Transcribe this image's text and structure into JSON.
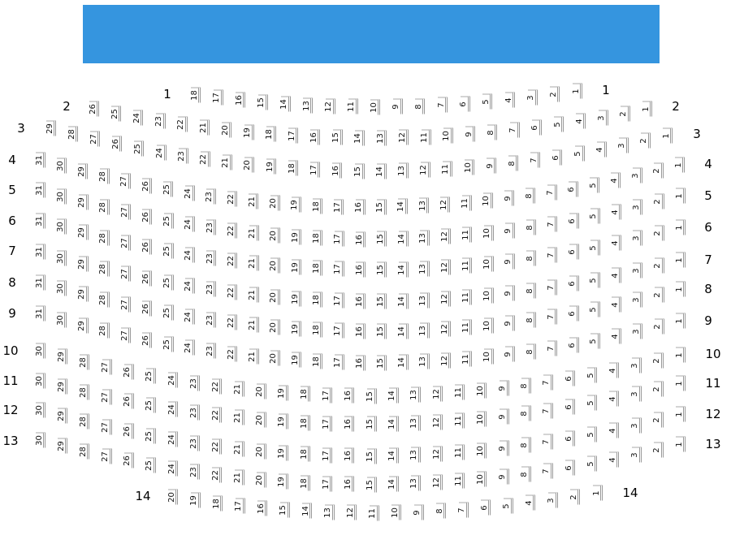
{
  "stage": {
    "color": "#3595df"
  },
  "rows": [
    {
      "label": "1",
      "seats": [
        "18",
        "17",
        "16",
        "15",
        "14",
        "13",
        "12",
        "11",
        "10",
        "9",
        "8",
        "7",
        "6",
        "5",
        "4",
        "3",
        "2",
        "1"
      ]
    },
    {
      "label": "2",
      "seats": [
        "26",
        "25",
        "24",
        "23",
        "22",
        "21",
        "20",
        "19",
        "18",
        "17",
        "16",
        "15",
        "14",
        "13",
        "12",
        "11",
        "10",
        "9",
        "8",
        "7",
        "6",
        "5",
        "4",
        "3",
        "2",
        "1"
      ]
    },
    {
      "label": "3",
      "seats": [
        "29",
        "28",
        "27",
        "26",
        "25",
        "24",
        "23",
        "22",
        "21",
        "20",
        "19",
        "18",
        "17",
        "16",
        "15",
        "14",
        "13",
        "12",
        "11",
        "10",
        "9",
        "8",
        "7",
        "6",
        "5",
        "4",
        "3",
        "2",
        "1"
      ]
    },
    {
      "label": "4",
      "seats": [
        "31",
        "30",
        "29",
        "28",
        "27",
        "26",
        "25",
        "24",
        "23",
        "22",
        "21",
        "20",
        "19",
        "18",
        "17",
        "16",
        "15",
        "14",
        "13",
        "12",
        "11",
        "10",
        "9",
        "8",
        "7",
        "6",
        "5",
        "4",
        "3",
        "2",
        "1"
      ]
    },
    {
      "label": "5",
      "seats": [
        "31",
        "30",
        "29",
        "28",
        "27",
        "26",
        "25",
        "24",
        "23",
        "22",
        "21",
        "20",
        "19",
        "18",
        "17",
        "16",
        "15",
        "14",
        "13",
        "12",
        "11",
        "10",
        "9",
        "8",
        "7",
        "6",
        "5",
        "4",
        "3",
        "2",
        "1"
      ]
    },
    {
      "label": "6",
      "seats": [
        "31",
        "30",
        "29",
        "28",
        "27",
        "26",
        "25",
        "24",
        "23",
        "22",
        "21",
        "20",
        "19",
        "18",
        "17",
        "16",
        "15",
        "14",
        "13",
        "12",
        "11",
        "10",
        "9",
        "8",
        "7",
        "6",
        "5",
        "4",
        "3",
        "2",
        "1"
      ]
    },
    {
      "label": "7",
      "seats": [
        "31",
        "30",
        "29",
        "28",
        "27",
        "26",
        "25",
        "24",
        "23",
        "22",
        "21",
        "20",
        "19",
        "18",
        "17",
        "16",
        "15",
        "14",
        "13",
        "12",
        "11",
        "10",
        "9",
        "8",
        "7",
        "6",
        "5",
        "4",
        "3",
        "2",
        "1"
      ]
    },
    {
      "label": "8",
      "seats": [
        "31",
        "30",
        "29",
        "28",
        "27",
        "26",
        "25",
        "24",
        "23",
        "22",
        "21",
        "20",
        "19",
        "18",
        "17",
        "16",
        "15",
        "14",
        "13",
        "12",
        "11",
        "10",
        "9",
        "8",
        "7",
        "6",
        "5",
        "4",
        "3",
        "2",
        "1"
      ]
    },
    {
      "label": "9",
      "seats": [
        "31",
        "30",
        "29",
        "28",
        "27",
        "26",
        "25",
        "24",
        "23",
        "22",
        "21",
        "20",
        "19",
        "18",
        "17",
        "16",
        "15",
        "14",
        "13",
        "12",
        "11",
        "10",
        "9",
        "8",
        "7",
        "6",
        "5",
        "4",
        "3",
        "2",
        "1"
      ]
    },
    {
      "label": "10",
      "seats": [
        "30",
        "29",
        "28",
        "27",
        "26",
        "25",
        "24",
        "23",
        "22",
        "21",
        "20",
        "19",
        "18",
        "17",
        "16",
        "15",
        "14",
        "13",
        "12",
        "11",
        "10",
        "9",
        "8",
        "7",
        "6",
        "5",
        "4",
        "3",
        "2",
        "1"
      ]
    },
    {
      "label": "11",
      "seats": [
        "30",
        "29",
        "28",
        "27",
        "26",
        "25",
        "24",
        "23",
        "22",
        "21",
        "20",
        "19",
        "18",
        "17",
        "16",
        "15",
        "14",
        "13",
        "12",
        "11",
        "10",
        "9",
        "8",
        "7",
        "6",
        "5",
        "4",
        "3",
        "2",
        "1"
      ]
    },
    {
      "label": "12",
      "seats": [
        "30",
        "29",
        "28",
        "27",
        "26",
        "25",
        "24",
        "23",
        "22",
        "21",
        "20",
        "19",
        "18",
        "17",
        "16",
        "15",
        "14",
        "13",
        "12",
        "11",
        "10",
        "9",
        "8",
        "7",
        "6",
        "5",
        "4",
        "3",
        "2",
        "1"
      ]
    },
    {
      "label": "13",
      "seats": [
        "30",
        "29",
        "28",
        "27",
        "26",
        "25",
        "24",
        "23",
        "22",
        "21",
        "20",
        "19",
        "18",
        "17",
        "16",
        "15",
        "14",
        "13",
        "12",
        "11",
        "10",
        "9",
        "8",
        "7",
        "6",
        "5",
        "4",
        "3",
        "2",
        "1"
      ]
    },
    {
      "label": "14",
      "seats": [
        "20",
        "19",
        "18",
        "17",
        "16",
        "15",
        "14",
        "13",
        "12",
        "11",
        "10",
        "9",
        "8",
        "7",
        "6",
        "5",
        "4",
        "3",
        "2",
        "1"
      ]
    }
  ]
}
